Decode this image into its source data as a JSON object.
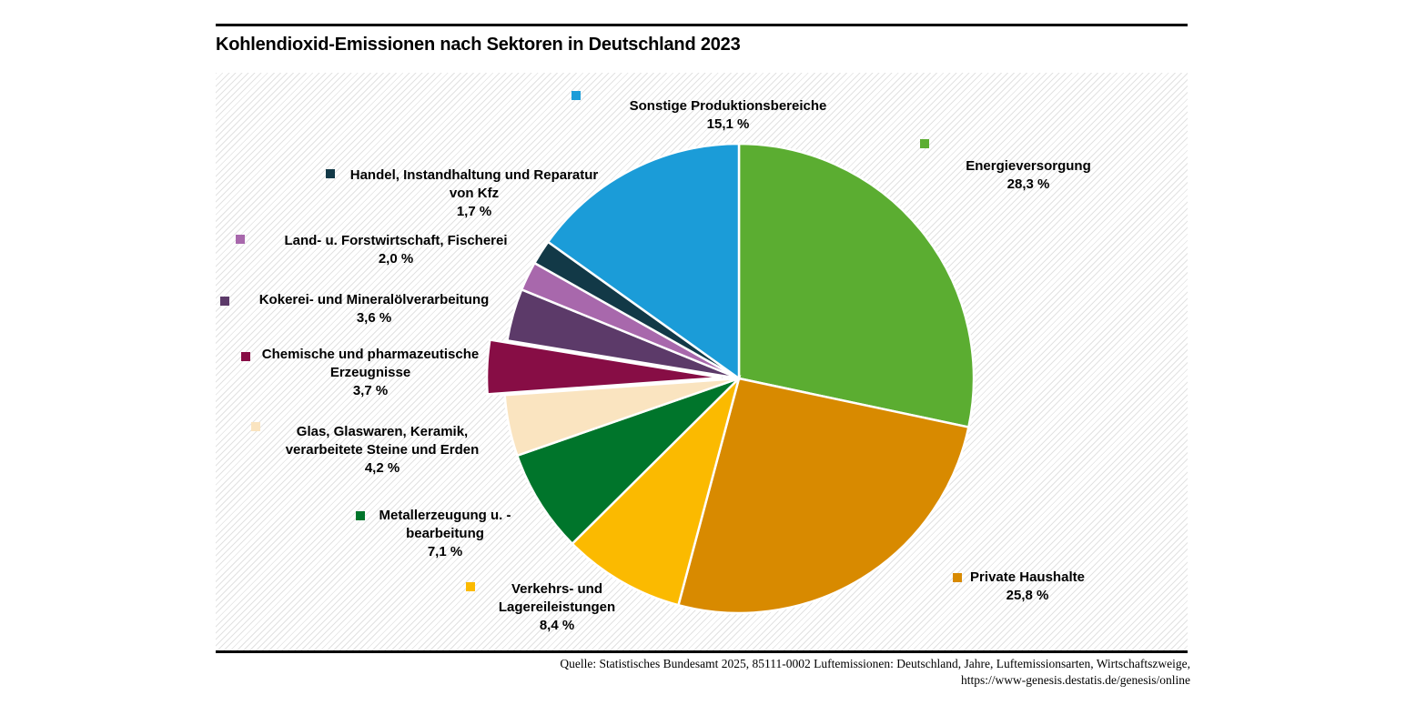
{
  "header": {
    "title": "Kohlendioxid-Emissionen nach Sektoren in Deutschland 2023"
  },
  "source": {
    "line1": "Quelle: Statistisches Bundesamt 2025, 85111-0002 Luftemissionen: Deutschland, Jahre, Luftemissionsarten, Wirtschaftszweige,",
    "line2": "https://www-genesis.destatis.de/genesis/online"
  },
  "chart_data": {
    "type": "pie",
    "title": "Kohlendioxid-Emissionen nach Sektoren in Deutschland 2023",
    "unit": "%",
    "start_angle": "12-oclock",
    "direction": "clockwise",
    "background_pattern": "light-gray-diagonal-hatch",
    "separator_color": "#ffffff",
    "slices": [
      {
        "label": "Energieversorgung",
        "value": 28.3,
        "pct_label": "28,3 %",
        "color": "#5BAD31",
        "explode": 0
      },
      {
        "label": "Private Haushalte",
        "value": 25.8,
        "pct_label": "25,8 %",
        "color": "#D88A00",
        "explode": 0
      },
      {
        "label": "Verkehrs- und\nLagereileistungen",
        "value": 8.4,
        "pct_label": "8,4 %",
        "color": "#FBBA00",
        "explode": 0
      },
      {
        "label": "Metallerzeugung u. -\nbearbeitung",
        "value": 7.1,
        "pct_label": "7,1 %",
        "color": "#00752B",
        "explode": 0
      },
      {
        "label": "Glas, Glaswaren, Keramik,\nverarbeitete Steine und Erden",
        "value": 4.2,
        "pct_label": "4,2 %",
        "color": "#FAE4C0",
        "explode": 0
      },
      {
        "label": "Chemische und pharmazeutische\nErzeugnisse",
        "value": 3.7,
        "pct_label": "3,7 %",
        "color": "#870D45",
        "explode": 19
      },
      {
        "label": "Kokerei- und Mineralölverarbeitung",
        "value": 3.6,
        "pct_label": "3,6 %",
        "color": "#5C3A69",
        "explode": 0
      },
      {
        "label": "Land- u. Forstwirtschaft, Fischerei",
        "value": 2.0,
        "pct_label": "2,0 %",
        "color": "#A868AC",
        "explode": 0
      },
      {
        "label": "Handel, Instandhaltung und Reparatur\nvon Kfz",
        "value": 1.7,
        "pct_label": "1,7 %",
        "color": "#123947",
        "explode": 0
      },
      {
        "label": "Sonstige Produktionsbereiche",
        "value": 15.1,
        "pct_label": "15,1 %",
        "color": "#1B9CD8",
        "explode": 0
      }
    ]
  }
}
